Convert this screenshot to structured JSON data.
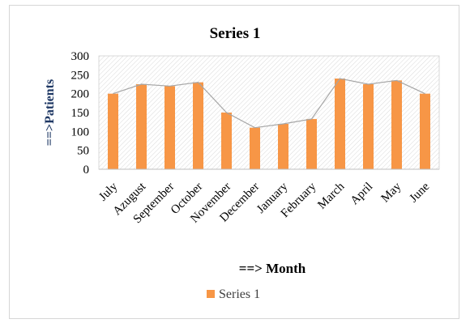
{
  "chart_data": {
    "type": "bar",
    "title": "Series 1",
    "xlabel": "==> Month",
    "ylabel": "==>Patients",
    "categories": [
      "July",
      "Azugust",
      "September",
      "October",
      "November",
      "December",
      "January",
      "February",
      "March",
      "April",
      "May",
      "June"
    ],
    "series": [
      {
        "name": "Series 1",
        "values": [
          200,
          225,
          220,
          230,
          150,
          110,
          120,
          133,
          240,
          225,
          235,
          200
        ],
        "color": "#f79646"
      }
    ],
    "trend_line_color": "#a6a6a6",
    "ylim": [
      0,
      300
    ],
    "yticks": [
      "0",
      "50",
      "100",
      "150",
      "200",
      "250",
      "300"
    ],
    "legend": {
      "label": "Series 1",
      "position": "bottom"
    },
    "plot_background": "diagonal-hatch",
    "grid": false
  }
}
